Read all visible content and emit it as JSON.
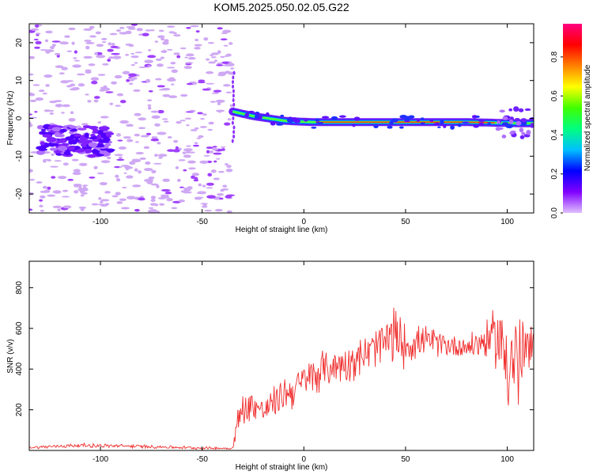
{
  "title": "KOM5.2025.050.02.05.G22",
  "colors": {
    "snr_line": "#f03030",
    "frame": "#000000",
    "noise_purple": "#a040ff",
    "noise_light": "#c8a0f0"
  },
  "chart_data": [
    {
      "type": "heatmap",
      "name": "spectrogram",
      "xlabel": "Height of straight line (km)",
      "ylabel": "Frequency (Hz)",
      "xlim": [
        -135,
        113
      ],
      "ylim": [
        -25,
        25
      ],
      "xticks": [
        -100,
        -50,
        0,
        50,
        100
      ],
      "yticks": [
        -20,
        -10,
        0,
        10,
        20
      ],
      "colorbar": {
        "label": "Normalized spectral amplitude",
        "range": [
          0,
          0.97
        ],
        "ticks": [
          0.0,
          0.2,
          0.4,
          0.6,
          0.8
        ],
        "colormap": [
          "#e0c0ff",
          "#8000ff",
          "#0000ff",
          "#00c0ff",
          "#00ff80",
          "#40ff00",
          "#ffff00",
          "#ff8000",
          "#ff0000",
          "#ff0080"
        ]
      },
      "signal_track": {
        "x": [
          -35,
          -30,
          -25,
          -20,
          -15,
          -10,
          -5,
          0,
          5,
          10,
          20,
          30,
          40,
          50,
          60,
          70,
          80,
          90,
          95,
          100,
          105,
          110,
          113
        ],
        "freq": [
          1.8,
          1.2,
          0.6,
          0.2,
          -0.2,
          -0.6,
          -0.8,
          -0.9,
          -1.0,
          -1.0,
          -1.0,
          -1.0,
          -1.0,
          -1.0,
          -1.0,
          -1.0,
          -1.0,
          -1.1,
          -1.2,
          -1.2,
          -1.3,
          -1.3,
          -1.3
        ]
      },
      "noise_cluster": {
        "x_center": -115,
        "freq_center": -5,
        "x_span": [
          -130,
          -95
        ],
        "freq_span": [
          -10,
          -2
        ]
      },
      "noise_cutoff_x": -35
    },
    {
      "type": "line",
      "name": "snr",
      "xlabel": "Height of straight line (km)",
      "ylabel": "SNR (v/v)",
      "xlim": [
        -135,
        113
      ],
      "ylim": [
        0,
        930
      ],
      "xticks": [
        -100,
        -50,
        0,
        50,
        100
      ],
      "yticks": [
        200,
        400,
        600,
        800
      ],
      "envelope": {
        "x": [
          -135,
          -110,
          -80,
          -50,
          -35,
          -33,
          -30,
          -25,
          -20,
          -15,
          -10,
          -5,
          0,
          5,
          10,
          20,
          30,
          40,
          45,
          50,
          60,
          70,
          80,
          90,
          95,
          100,
          105,
          110,
          113
        ],
        "mid": [
          15,
          25,
          20,
          12,
          10,
          120,
          200,
          230,
          190,
          230,
          280,
          300,
          340,
          370,
          400,
          430,
          470,
          530,
          560,
          520,
          540,
          520,
          510,
          540,
          560,
          480,
          420,
          500,
          480
        ],
        "amp": [
          8,
          12,
          10,
          8,
          6,
          80,
          100,
          90,
          80,
          90,
          100,
          110,
          110,
          110,
          110,
          110,
          110,
          150,
          180,
          120,
          80,
          70,
          70,
          110,
          180,
          380,
          320,
          170,
          150
        ]
      }
    }
  ]
}
